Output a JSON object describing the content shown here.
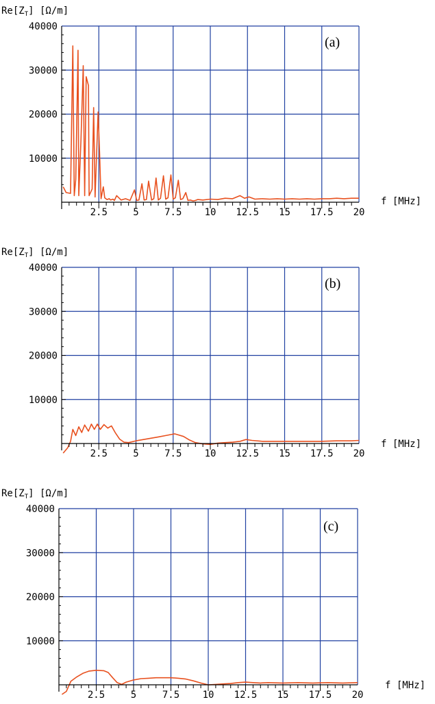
{
  "panels": [
    {
      "ylabel_main": "Re[Z",
      "ylabel_sub": "T",
      "ylabel_rest": "]  [Ω/m]",
      "xlabel": "f  [MHz]",
      "tag": "(a)"
    },
    {
      "ylabel_main": "Re[Z",
      "ylabel_sub": "T",
      "ylabel_rest": "]  [Ω/m]",
      "xlabel": "f  [MHz]",
      "tag": "(b)"
    },
    {
      "ylabel_main": "Re[Z",
      "ylabel_sub": "T",
      "ylabel_rest": "]  [Ω/m]",
      "xlabel": "f  [MHz]",
      "tag": "(c)"
    }
  ],
  "colors": {
    "grid": "#1f3fa0",
    "curve": "#e8501e",
    "axis": "#000000",
    "text": "#000000"
  },
  "chart_data": [
    {
      "type": "line",
      "title": "(a)",
      "xlabel": "f  [MHz]",
      "ylabel": "Re[ZT]  [Ω/m]",
      "xlim": [
        0,
        20
      ],
      "ylim": [
        0,
        40000
      ],
      "x_ticks": [
        2.5,
        5,
        7.5,
        10,
        12.5,
        15,
        17.5,
        20
      ],
      "x_tick_labels": [
        "2.5",
        "5",
        "7.5",
        "10",
        "12.5",
        "15",
        "17.5",
        "20"
      ],
      "y_ticks": [
        10000,
        20000,
        30000,
        40000
      ],
      "y_tick_labels": [
        "10000",
        "20000",
        "30000",
        "40000"
      ],
      "grid": true,
      "series": [
        {
          "x": [
            0.1,
            0.3,
            0.6,
            0.75,
            0.85,
            0.95,
            1.1,
            1.15,
            1.3,
            1.45,
            1.55,
            1.65,
            1.8,
            1.85,
            2.05,
            2.15,
            2.25,
            2.45,
            2.55,
            2.65,
            2.8,
            2.9,
            3.05,
            3.2,
            3.3,
            3.45,
            3.55,
            3.7,
            4.0,
            4.3,
            4.6,
            4.9,
            5.05,
            5.2,
            5.4,
            5.55,
            5.7,
            5.85,
            6.05,
            6.2,
            6.35,
            6.5,
            6.65,
            6.85,
            7.0,
            7.15,
            7.35,
            7.5,
            7.65,
            7.85,
            8.0,
            8.15,
            8.35,
            8.5,
            8.65,
            8.85,
            9.0,
            9.15,
            9.5,
            10.0,
            10.5,
            11.0,
            11.5,
            12.0,
            12.3,
            12.6,
            13.0,
            13.5,
            14.0,
            14.5,
            15.0,
            15.5,
            16.0,
            16.5,
            17.0,
            17.5,
            18.0,
            18.5,
            19.0,
            19.5,
            20.0
          ],
          "y": [
            3500,
            2200,
            2000,
            35500,
            1500,
            5200,
            34500,
            1500,
            14200,
            31000,
            1500,
            28500,
            26500,
            1500,
            3000,
            21500,
            1200,
            20500,
            11500,
            800,
            3500,
            1000,
            600,
            800,
            500,
            700,
            400,
            1500,
            500,
            800,
            400,
            2800,
            400,
            500,
            4200,
            500,
            600,
            4800,
            500,
            800,
            5500,
            500,
            900,
            6000,
            700,
            1000,
            6200,
            700,
            1000,
            5000,
            600,
            800,
            2200,
            400,
            500,
            300,
            400,
            600,
            500,
            700,
            600,
            900,
            800,
            1500,
            900,
            1200,
            700,
            800,
            700,
            800,
            700,
            800,
            700,
            800,
            700,
            800,
            800,
            900,
            800,
            900,
            900
          ]
        }
      ]
    },
    {
      "type": "line",
      "title": "(b)",
      "xlabel": "f  [MHz]",
      "ylabel": "Re[ZT]  [Ω/m]",
      "xlim": [
        0,
        20
      ],
      "ylim": [
        0,
        40000
      ],
      "x_ticks": [
        2.5,
        5,
        7.5,
        10,
        12.5,
        15,
        17.5,
        20
      ],
      "x_tick_labels": [
        "2.5",
        "5",
        "7.5",
        "10",
        "12.5",
        "15",
        "17.5",
        "20"
      ],
      "y_ticks": [
        10000,
        20000,
        30000,
        40000
      ],
      "y_tick_labels": [
        "10000",
        "20000",
        "30000",
        "40000"
      ],
      "grid": true,
      "series": [
        {
          "x": [
            0.1,
            0.4,
            0.6,
            0.75,
            0.95,
            1.15,
            1.35,
            1.55,
            1.8,
            2.0,
            2.2,
            2.4,
            2.6,
            2.85,
            3.1,
            3.35,
            3.6,
            3.9,
            4.2,
            4.5,
            5.0,
            5.5,
            6.0,
            6.5,
            7.0,
            7.3,
            7.6,
            7.8,
            8.2,
            8.6,
            9.0,
            9.5,
            10.0,
            10.5,
            11.0,
            11.5,
            12.0,
            12.4,
            12.8,
            13.5,
            14.5,
            15.5,
            16.5,
            17.5,
            18.5,
            19.5,
            20.0
          ],
          "y": [
            -3000,
            -1000,
            500,
            3200,
            1800,
            3800,
            2500,
            4200,
            2800,
            4400,
            3200,
            4400,
            3200,
            4300,
            3500,
            4000,
            2500,
            1000,
            300,
            200,
            600,
            900,
            1200,
            1500,
            1800,
            2000,
            2200,
            2000,
            1600,
            800,
            200,
            -100,
            -200,
            100,
            200,
            300,
            500,
            900,
            700,
            500,
            500,
            500,
            500,
            500,
            600,
            600,
            700
          ]
        }
      ]
    },
    {
      "type": "line",
      "title": "(c)",
      "xlabel": "f  [MHz]",
      "ylabel": "Re[ZT]  [Ω/m]",
      "xlim": [
        0,
        20
      ],
      "ylim": [
        0,
        40000
      ],
      "x_ticks": [
        2.5,
        5,
        7.5,
        10,
        12.5,
        15,
        17.5,
        20
      ],
      "x_tick_labels": [
        "2.5",
        "5",
        "7.5",
        "10",
        "12.5",
        "15",
        "17.5",
        "20"
      ],
      "y_ticks": [
        10000,
        20000,
        30000,
        40000
      ],
      "y_tick_labels": [
        "10000",
        "20000",
        "30000",
        "40000"
      ],
      "grid": true,
      "series": [
        {
          "x": [
            0.2,
            0.5,
            0.8,
            1.2,
            1.6,
            2.0,
            2.5,
            3.0,
            3.3,
            3.6,
            3.9,
            4.2,
            4.5,
            5.0,
            5.5,
            6.0,
            6.5,
            7.0,
            7.5,
            8.0,
            8.5,
            9.0,
            9.5,
            10.0,
            10.5,
            11.0,
            11.5,
            12.0,
            12.5,
            13.0,
            13.5,
            14.0,
            15.0,
            16.0,
            17.0,
            18.0,
            19.0,
            20.0
          ],
          "y": [
            -4000,
            -1500,
            800,
            1800,
            2600,
            3100,
            3300,
            3200,
            2800,
            1600,
            500,
            100,
            600,
            1100,
            1400,
            1500,
            1600,
            1600,
            1600,
            1500,
            1300,
            900,
            400,
            0,
            100,
            200,
            300,
            500,
            600,
            500,
            400,
            500,
            400,
            500,
            400,
            500,
            400,
            500
          ]
        }
      ]
    }
  ]
}
